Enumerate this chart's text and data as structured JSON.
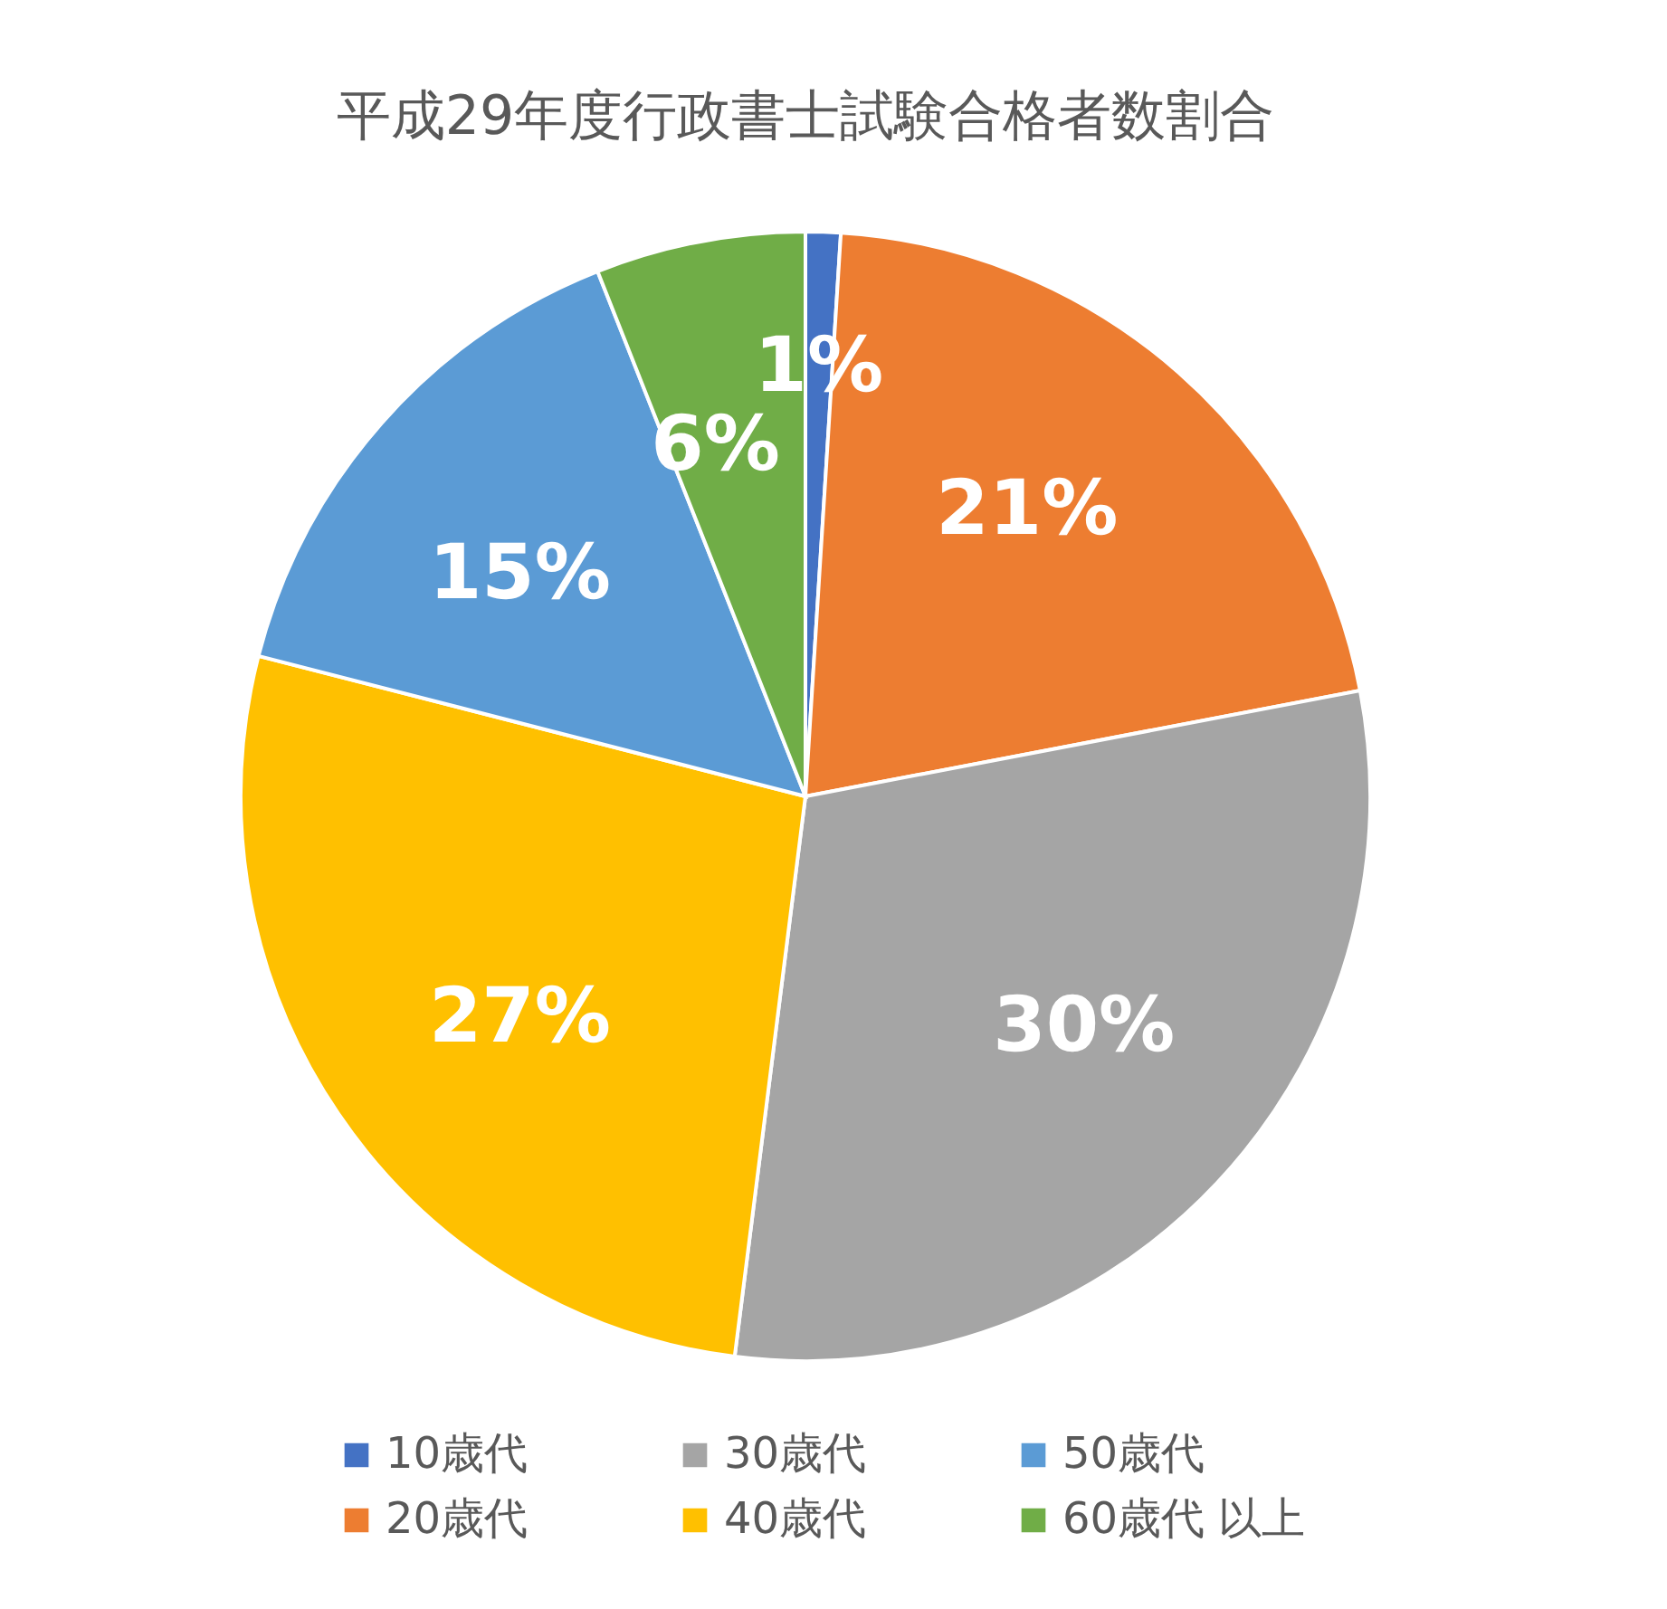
{
  "chart_data": {
    "type": "pie",
    "title": "平成29年度行政書士試験合格者数割合",
    "categories": [
      "10歳代",
      "20歳代",
      "30歳代",
      "40歳代",
      "50歳代",
      "60歳代 以上"
    ],
    "values": [
      1,
      21,
      30,
      27,
      15,
      6
    ],
    "colors": [
      "#4472c4",
      "#ed7d31",
      "#a5a5a5",
      "#ffc000",
      "#5b9bd5",
      "#70ad47"
    ],
    "value_labels": [
      "1%",
      "21%",
      "30%",
      "27%",
      "15%",
      "6%"
    ],
    "legend": "bottom"
  }
}
